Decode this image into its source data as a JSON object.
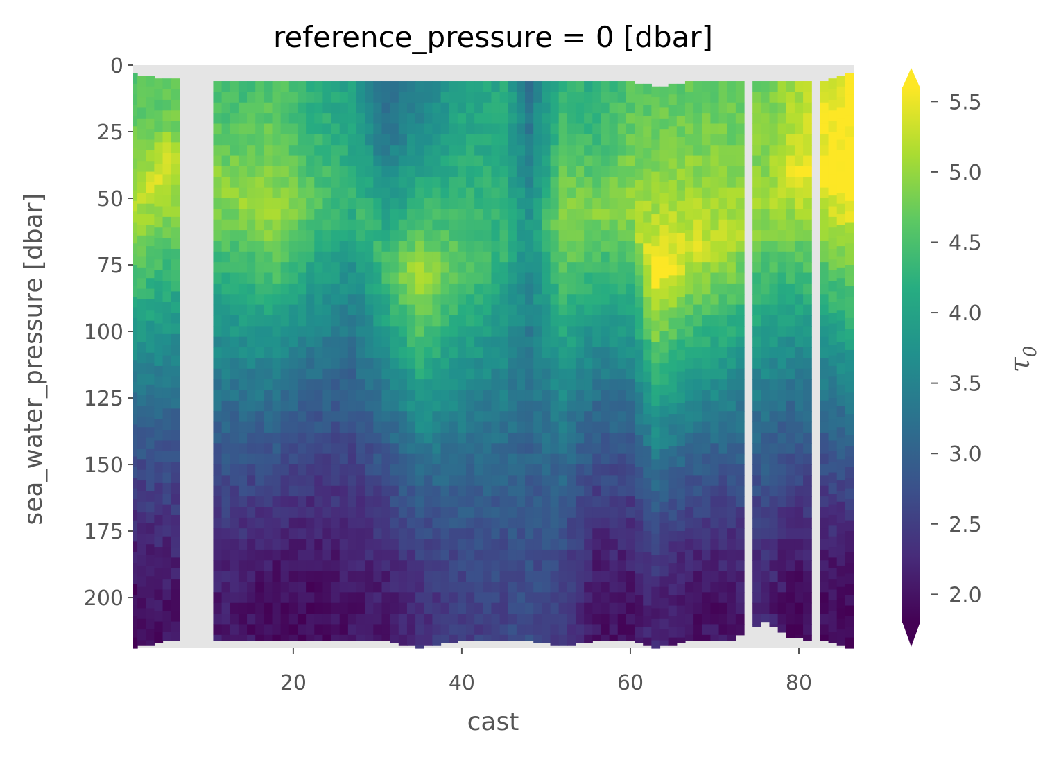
{
  "chart_data": {
    "type": "heatmap",
    "title": "reference_pressure = 0 [dbar]",
    "xlabel": "cast",
    "ylabel": "sea_water_pressure [dbar]",
    "colorbar_label": "τ",
    "colorbar_label_sub": "0",
    "colormap": "viridis",
    "colorbar_extend": "both",
    "xlim": [
      1,
      86.5
    ],
    "ylim": [
      219,
      0
    ],
    "clim": [
      1.8,
      5.6
    ],
    "x_ticks": [
      20,
      40,
      60,
      80
    ],
    "x_tick_labels": [
      "20",
      "40",
      "60",
      "80"
    ],
    "y_ticks": [
      0,
      25,
      50,
      75,
      100,
      125,
      150,
      175,
      200
    ],
    "y_tick_labels": [
      "0",
      "25",
      "50",
      "75",
      "100",
      "125",
      "150",
      "175",
      "200"
    ],
    "cb_ticks": [
      2.0,
      2.5,
      3.0,
      3.5,
      4.0,
      4.5,
      5.0,
      5.5
    ],
    "cb_tick_labels": [
      "2.0",
      "2.5",
      "3.0",
      "3.5",
      "4.0",
      "4.5",
      "5.0",
      "5.5"
    ],
    "missing_casts": [
      7,
      8,
      9,
      10,
      74,
      82
    ],
    "profile_keys": [
      "x",
      "surf",
      "peak_p",
      "peak_v",
      "deep",
      "top",
      "bottom"
    ],
    "profiles": [
      [
        1,
        4.6,
        55,
        5.2,
        1.9,
        3,
        219
      ],
      [
        5,
        4.6,
        38,
        5.4,
        2.0,
        5,
        216
      ],
      [
        12,
        4.4,
        48,
        5.0,
        2.1,
        6,
        216
      ],
      [
        18,
        4.6,
        58,
        5.1,
        1.9,
        6,
        216
      ],
      [
        22,
        4.2,
        50,
        4.7,
        1.9,
        6,
        216
      ],
      [
        27,
        4.0,
        50,
        4.3,
        2.0,
        6,
        216
      ],
      [
        31,
        3.1,
        75,
        4.5,
        2.1,
        6,
        216
      ],
      [
        35,
        3.5,
        80,
        5.2,
        2.3,
        6,
        219
      ],
      [
        40,
        4.0,
        75,
        4.6,
        2.5,
        6,
        216
      ],
      [
        45,
        4.1,
        70,
        4.3,
        2.6,
        6,
        216
      ],
      [
        48,
        3.3,
        60,
        3.8,
        2.7,
        6,
        216
      ],
      [
        52,
        4.3,
        58,
        5.0,
        2.5,
        6,
        218
      ],
      [
        56,
        4.2,
        55,
        4.9,
        2.0,
        6,
        216
      ],
      [
        60,
        4.6,
        55,
        5.0,
        2.0,
        6,
        216
      ],
      [
        63,
        4.6,
        80,
        5.6,
        2.2,
        8,
        219
      ],
      [
        67,
        4.7,
        70,
        5.4,
        2.0,
        6,
        216
      ],
      [
        72,
        4.7,
        65,
        5.2,
        2.0,
        6,
        216
      ],
      [
        76,
        4.8,
        55,
        5.0,
        2.2,
        6,
        209
      ],
      [
        79,
        5.0,
        40,
        5.5,
        1.9,
        6,
        215
      ],
      [
        83,
        5.4,
        40,
        5.7,
        1.9,
        6,
        216
      ],
      [
        86,
        5.6,
        45,
        5.8,
        1.9,
        3,
        219
      ]
    ]
  }
}
